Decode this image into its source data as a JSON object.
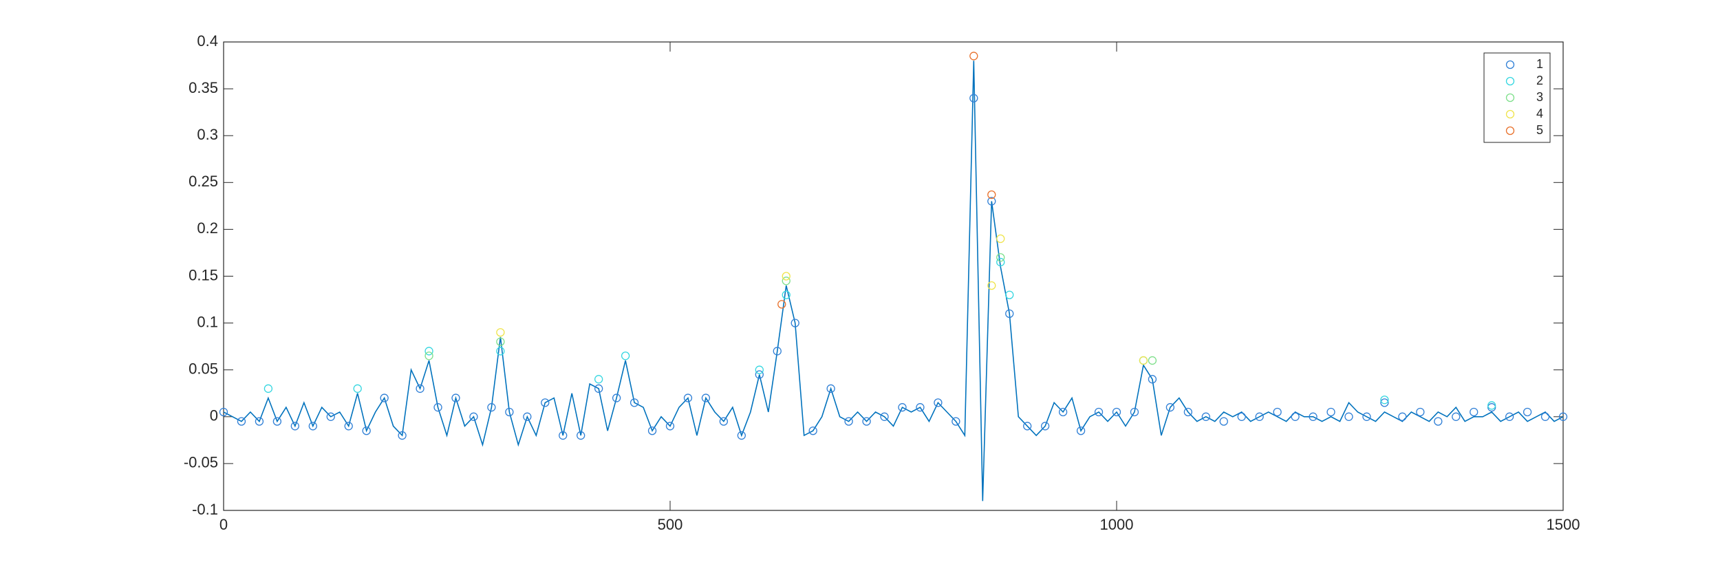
{
  "chart_data": {
    "type": "scatter",
    "xlim": [
      0,
      1500
    ],
    "xticks": [
      0,
      500,
      1000,
      1500
    ],
    "ylim": [
      -0.1,
      0.4
    ],
    "yticks": [
      -0.1,
      -0.05,
      0,
      0.05,
      0.1,
      0.15,
      0.2,
      0.25,
      0.3,
      0.35,
      0.4
    ],
    "legend_position": "upper right",
    "line": {
      "color": "#0072bd",
      "x": [
        0,
        10,
        20,
        30,
        40,
        50,
        60,
        70,
        80,
        90,
        100,
        110,
        120,
        130,
        140,
        150,
        160,
        170,
        180,
        190,
        200,
        210,
        220,
        230,
        240,
        250,
        260,
        270,
        280,
        290,
        300,
        310,
        320,
        330,
        340,
        350,
        360,
        370,
        380,
        390,
        400,
        410,
        420,
        430,
        440,
        450,
        460,
        470,
        480,
        490,
        500,
        510,
        520,
        530,
        540,
        550,
        560,
        570,
        580,
        590,
        600,
        610,
        620,
        630,
        640,
        650,
        660,
        670,
        680,
        690,
        700,
        710,
        720,
        730,
        740,
        750,
        760,
        770,
        780,
        790,
        800,
        810,
        820,
        830,
        840,
        850,
        860,
        870,
        880,
        890,
        900,
        910,
        920,
        930,
        940,
        950,
        960,
        970,
        980,
        990,
        1000,
        1010,
        1020,
        1030,
        1040,
        1050,
        1060,
        1070,
        1080,
        1090,
        1100,
        1110,
        1120,
        1130,
        1140,
        1150,
        1160,
        1170,
        1180,
        1190,
        1200,
        1210,
        1220,
        1230,
        1240,
        1250,
        1260,
        1270,
        1280,
        1290,
        1300,
        1310,
        1320,
        1330,
        1340,
        1350,
        1360,
        1370,
        1380,
        1390,
        1400,
        1410,
        1420,
        1430,
        1440,
        1450,
        1460,
        1470,
        1480,
        1490,
        1500
      ],
      "values": [
        0.005,
        0,
        -0.005,
        0.005,
        -0.005,
        0.02,
        -0.005,
        0.01,
        -0.01,
        0.015,
        -0.01,
        0.01,
        0,
        0.005,
        -0.01,
        0.025,
        -0.015,
        0.005,
        0.02,
        -0.01,
        -0.02,
        0.05,
        0.03,
        0.06,
        0.01,
        -0.02,
        0.02,
        -0.01,
        0,
        -0.03,
        0.01,
        0.085,
        0.005,
        -0.03,
        0,
        -0.02,
        0.015,
        0.02,
        -0.02,
        0.025,
        -0.02,
        0.035,
        0.03,
        -0.015,
        0.02,
        0.06,
        0.015,
        0.01,
        -0.015,
        0,
        -0.01,
        0.01,
        0.02,
        -0.02,
        0.02,
        0.005,
        -0.005,
        0.01,
        -0.02,
        0.005,
        0.045,
        0.005,
        0.07,
        0.14,
        0.1,
        -0.02,
        -0.015,
        0,
        0.03,
        0,
        -0.005,
        0.005,
        -0.005,
        0.005,
        0,
        -0.01,
        0.01,
        0.005,
        0.01,
        -0.005,
        0.015,
        0.005,
        -0.005,
        -0.02,
        0.38,
        -0.09,
        0.23,
        0.16,
        0.11,
        0,
        -0.01,
        -0.02,
        -0.01,
        0.015,
        0.005,
        0.02,
        -0.015,
        0,
        0.005,
        -0.005,
        0.005,
        -0.01,
        0.005,
        0.055,
        0.04,
        -0.02,
        0.01,
        0.02,
        0.005,
        -0.005,
        0,
        -0.005,
        0.005,
        0,
        0.005,
        -0.005,
        0,
        0.005,
        0,
        -0.005,
        0.005,
        0,
        0,
        -0.005,
        0,
        -0.005,
        0.015,
        0.005,
        0,
        -0.005,
        0.005,
        0,
        -0.005,
        0.005,
        0,
        -0.005,
        0.005,
        0,
        0.01,
        -0.005,
        0,
        0,
        0.005,
        -0.005,
        0,
        0.005,
        -0.005,
        0,
        0.005,
        -0.005,
        0
      ]
    },
    "series": [
      {
        "name": "1",
        "color": "#2f7fd6",
        "x": [
          0,
          20,
          40,
          60,
          80,
          100,
          120,
          140,
          160,
          180,
          200,
          220,
          240,
          260,
          280,
          300,
          320,
          340,
          360,
          380,
          400,
          420,
          440,
          460,
          480,
          500,
          520,
          540,
          560,
          580,
          600,
          620,
          640,
          660,
          680,
          700,
          720,
          740,
          760,
          780,
          800,
          820,
          840,
          860,
          880,
          900,
          920,
          940,
          960,
          980,
          1000,
          1020,
          1040,
          1060,
          1080,
          1100,
          1120,
          1140,
          1160,
          1180,
          1200,
          1220,
          1240,
          1260,
          1280,
          1300,
          1320,
          1340,
          1360,
          1380,
          1400,
          1420,
          1440,
          1460,
          1480,
          1500
        ],
        "values": [
          0.005,
          -0.005,
          -0.005,
          -0.005,
          -0.01,
          -0.01,
          0,
          -0.01,
          -0.015,
          0.02,
          -0.02,
          0.03,
          0.01,
          0.02,
          0,
          0.01,
          0.005,
          0,
          0.015,
          -0.02,
          -0.02,
          0.03,
          0.02,
          0.015,
          -0.015,
          -0.01,
          0.02,
          0.02,
          -0.005,
          -0.02,
          0.045,
          0.07,
          0.1,
          -0.015,
          0.03,
          -0.005,
          -0.005,
          0,
          0.01,
          0.01,
          0.015,
          -0.005,
          0.34,
          0.23,
          0.11,
          -0.01,
          -0.01,
          0.005,
          -0.015,
          0.005,
          0.005,
          0.005,
          0.04,
          0.01,
          0.005,
          0,
          -0.005,
          0,
          0,
          0.005,
          0,
          0,
          0.005,
          0,
          0,
          0.015,
          0,
          0.005,
          -0.005,
          0,
          0.005,
          0.01,
          0,
          0.005,
          0,
          0
        ]
      },
      {
        "name": "2",
        "color": "#33d6e0",
        "x": [
          50,
          150,
          230,
          310,
          420,
          450,
          600,
          630,
          870,
          880,
          1030,
          1300,
          1420
        ],
        "values": [
          0.03,
          0.03,
          0.07,
          0.07,
          0.04,
          0.065,
          0.05,
          0.13,
          0.165,
          0.13,
          0.06,
          0.018,
          0.012
        ]
      },
      {
        "name": "3",
        "color": "#7ddf8a",
        "x": [
          230,
          310,
          630,
          870,
          1040
        ],
        "values": [
          0.065,
          0.08,
          0.145,
          0.17,
          0.06
        ]
      },
      {
        "name": "4",
        "color": "#efe44a",
        "x": [
          310,
          630,
          860,
          870,
          1030
        ],
        "values": [
          0.09,
          0.15,
          0.14,
          0.19,
          0.06
        ]
      },
      {
        "name": "5",
        "color": "#e8702a",
        "x": [
          625,
          840,
          860
        ],
        "values": [
          0.12,
          0.385,
          0.237
        ]
      }
    ]
  }
}
